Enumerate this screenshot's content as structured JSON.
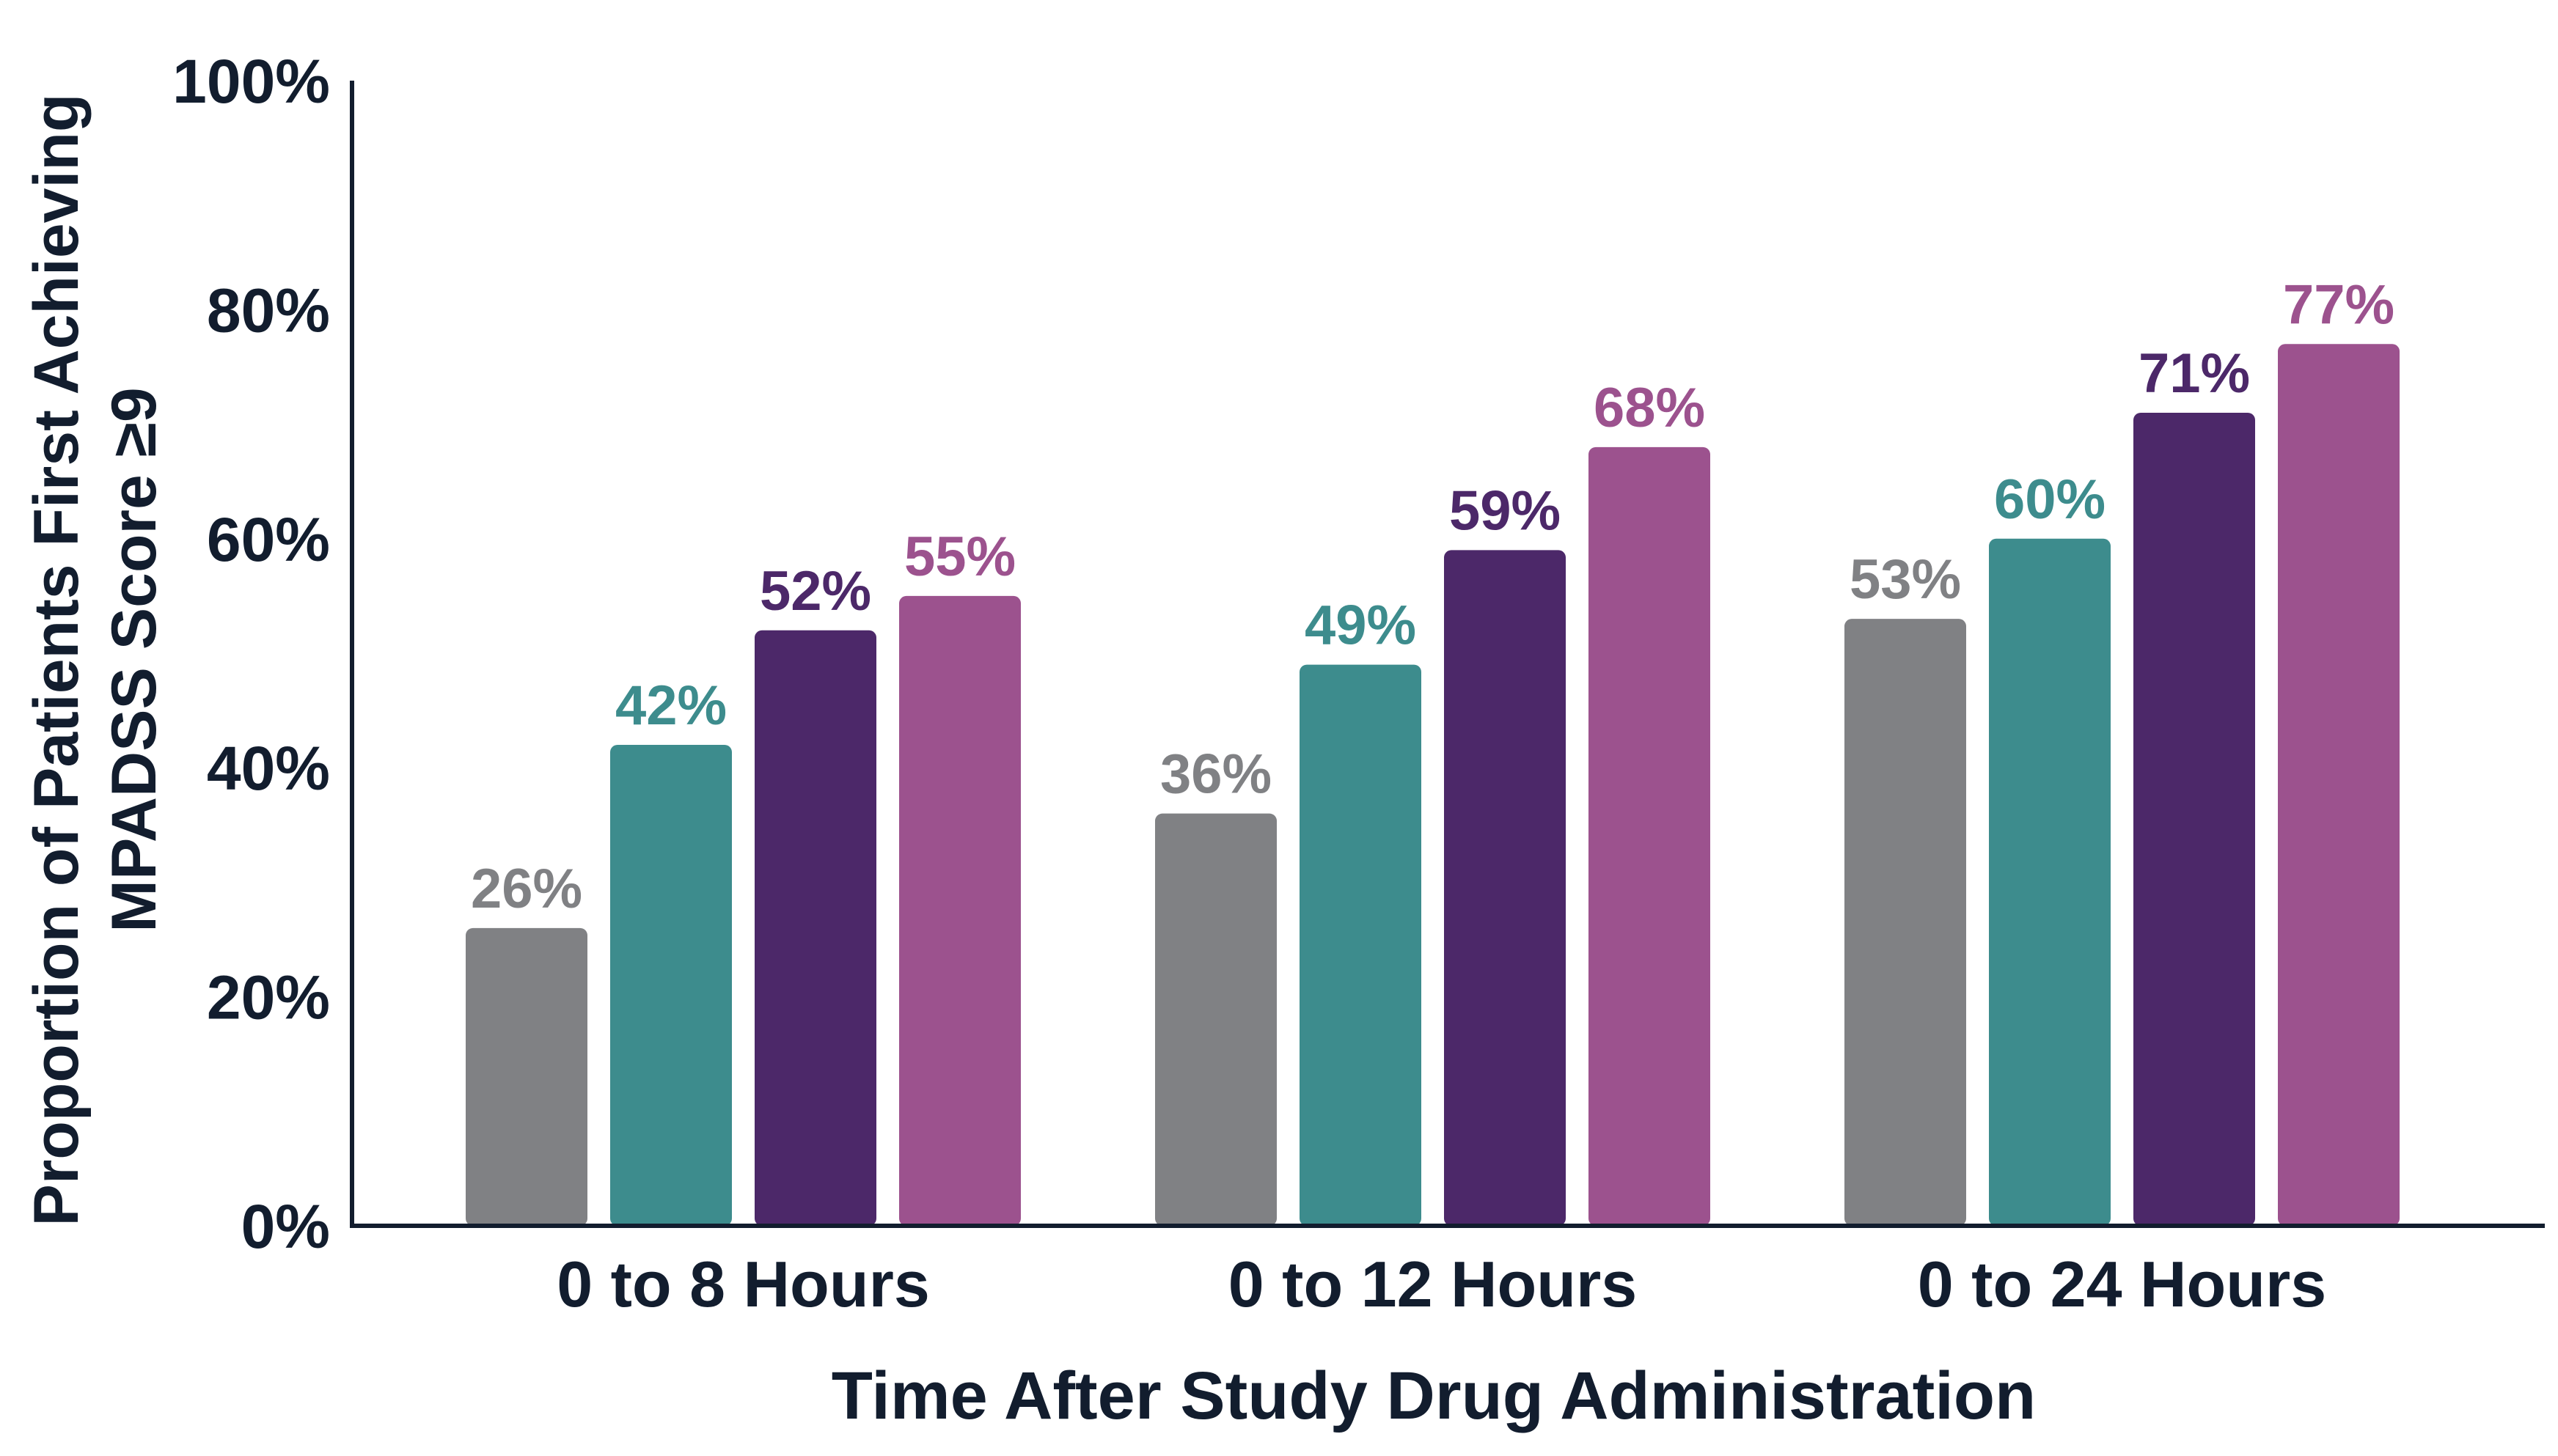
{
  "chart_data": {
    "type": "bar",
    "categories": [
      "0 to 8 Hours",
      "0 to 12 Hours",
      "0 to 24 Hours"
    ],
    "series": [
      {
        "values": [
          26,
          36,
          53
        ],
        "labels": [
          "26%",
          "36%",
          "53%"
        ],
        "color": "#808184"
      },
      {
        "values": [
          42,
          49,
          60
        ],
        "labels": [
          "42%",
          "49%",
          "60%"
        ],
        "color": "#3d8c8d"
      },
      {
        "values": [
          52,
          59,
          71
        ],
        "labels": [
          "52%",
          "59%",
          "71%"
        ],
        "color": "#4c2869"
      },
      {
        "values": [
          55,
          68,
          77
        ],
        "labels": [
          "55%",
          "68%",
          "77%"
        ],
        "color": "#9c528e"
      }
    ],
    "xlabel": "Time After Study Drug Administration",
    "ylabel_line1": "Proportion of Patients First Achieving",
    "ylabel_line2": "MPADSS Score ≥9",
    "ylim": [
      0,
      100
    ],
    "yticks": [
      0,
      20,
      40,
      60,
      80,
      100
    ],
    "ytick_labels": [
      "0%",
      "20%",
      "40%",
      "60%",
      "80%",
      "100%"
    ],
    "grid": false,
    "axis_color": "#121d2e"
  }
}
